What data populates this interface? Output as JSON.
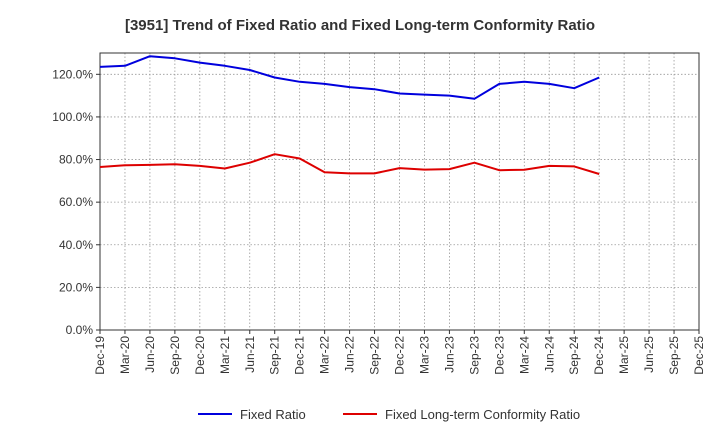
{
  "chart_data": {
    "type": "line",
    "title": "[3951]  Trend of Fixed Ratio and Fixed Long-term Conformity Ratio",
    "xlabel": "",
    "ylabel": "",
    "categories": [
      "Dec-19",
      "Mar-20",
      "Jun-20",
      "Sep-20",
      "Dec-20",
      "Mar-21",
      "Jun-21",
      "Sep-21",
      "Dec-21",
      "Mar-22",
      "Jun-22",
      "Sep-22",
      "Dec-22",
      "Mar-23",
      "Jun-23",
      "Sep-23",
      "Dec-23",
      "Mar-24",
      "Jun-24",
      "Sep-24",
      "Dec-24",
      "Mar-25"
    ],
    "x_tick_labels": [
      "Dec-19",
      "Mar-20",
      "Jun-20",
      "Sep-20",
      "Dec-20",
      "Mar-21",
      "Jun-21",
      "Sep-21",
      "Dec-21",
      "Mar-22",
      "Jun-22",
      "Sep-22",
      "Dec-22",
      "Mar-23",
      "Jun-23",
      "Sep-23",
      "Dec-23",
      "Mar-24",
      "Jun-24",
      "Sep-24",
      "Dec-24",
      "Mar-25",
      "Jun-25",
      "Sep-25",
      "Dec-25"
    ],
    "y_ticks": [
      0,
      20,
      40,
      60,
      80,
      100,
      120
    ],
    "y_tick_labels": [
      "0.0%",
      "20.0%",
      "40.0%",
      "60.0%",
      "80.0%",
      "100.0%",
      "120.0%"
    ],
    "ylim": [
      0,
      130
    ],
    "grid": true,
    "legend_position": "bottom",
    "series": [
      {
        "name": "Fixed Ratio",
        "color": "#0000dd",
        "values": [
          123.5,
          124.0,
          128.5,
          127.5,
          125.5,
          124.0,
          122.0,
          118.5,
          116.5,
          115.5,
          114.0,
          113.0,
          111.0,
          110.5,
          110.0,
          108.5,
          115.5,
          116.5,
          115.5,
          113.5,
          118.5,
          null
        ]
      },
      {
        "name": "Fixed Long-term Conformity Ratio",
        "color": "#dd0000",
        "values": [
          76.5,
          77.3,
          77.5,
          77.8,
          77.0,
          75.8,
          78.5,
          82.5,
          80.5,
          74.0,
          73.5,
          73.5,
          76.0,
          75.3,
          75.5,
          78.5,
          75.0,
          75.2,
          77.0,
          76.8,
          73.2,
          null
        ]
      }
    ]
  }
}
